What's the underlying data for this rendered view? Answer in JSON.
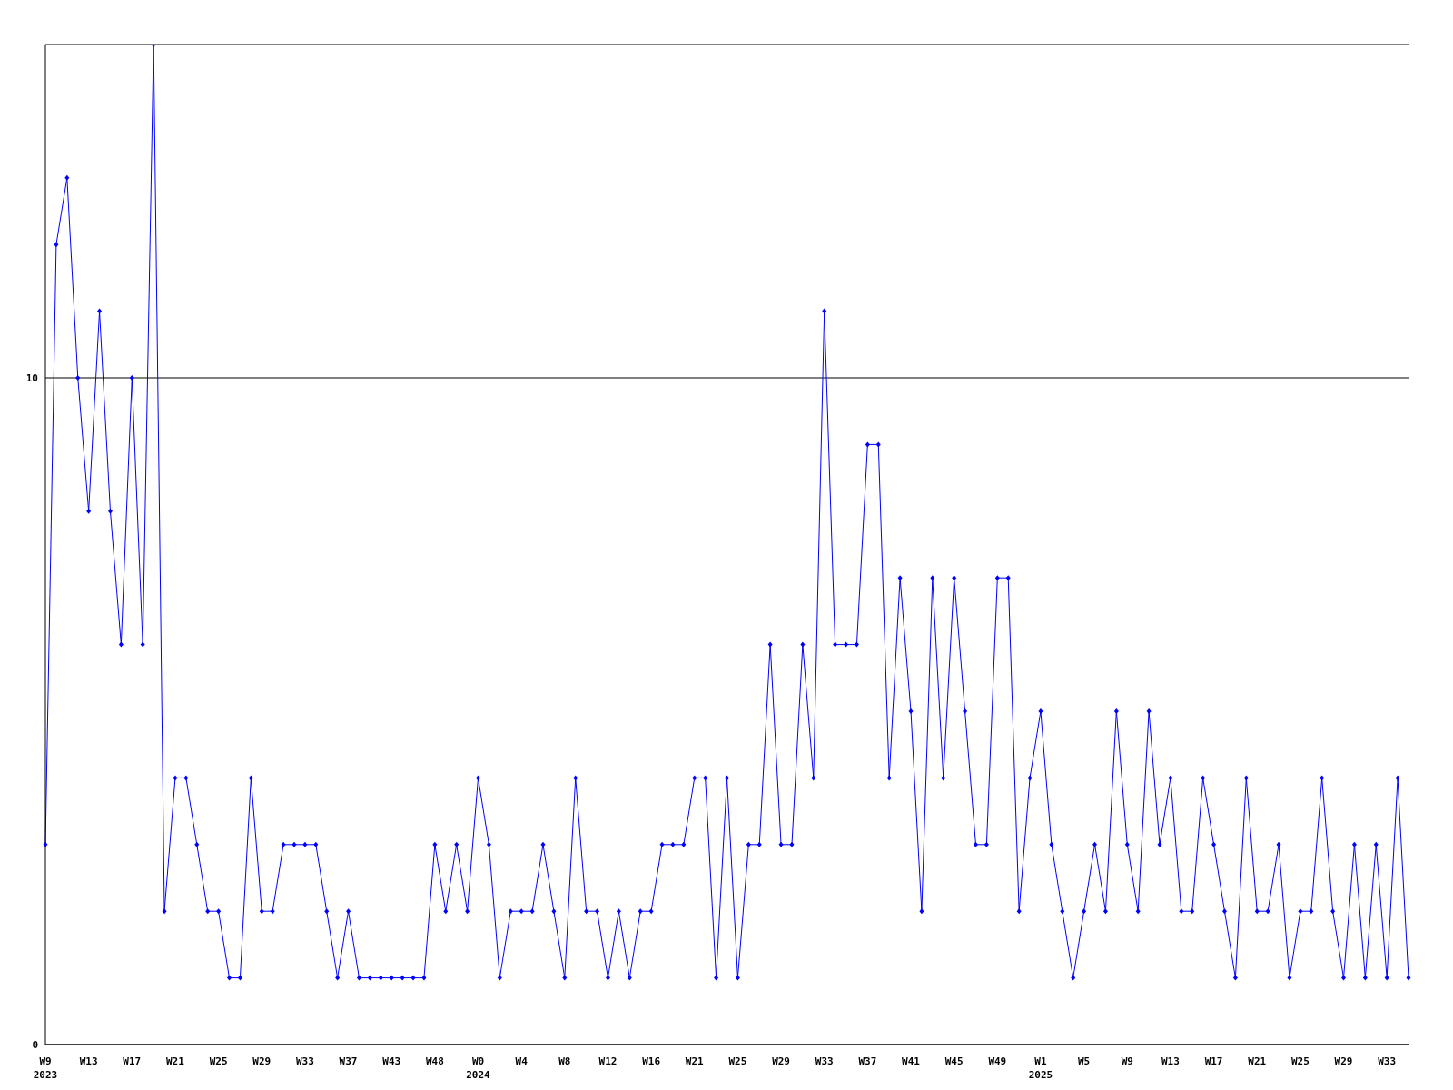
{
  "chart_data": {
    "type": "line",
    "categories": [
      "W9\n2023",
      null,
      null,
      null,
      "W13",
      null,
      null,
      null,
      "W17",
      null,
      null,
      null,
      "W21",
      null,
      null,
      null,
      "W25",
      null,
      null,
      null,
      "W29",
      null,
      null,
      null,
      "W33",
      null,
      null,
      null,
      "W37",
      null,
      null,
      null,
      "W43",
      null,
      null,
      null,
      "W48",
      null,
      null,
      null,
      "W0\n2024",
      null,
      null,
      null,
      "W4",
      null,
      null,
      null,
      "W8",
      null,
      null,
      null,
      "W12",
      null,
      null,
      null,
      "W16",
      null,
      null,
      null,
      "W21",
      null,
      null,
      null,
      "W25",
      null,
      null,
      null,
      "W29",
      null,
      null,
      null,
      "W33",
      null,
      null,
      null,
      "W37",
      null,
      null,
      null,
      "W41",
      null,
      null,
      null,
      "W45",
      null,
      null,
      null,
      "W49",
      null,
      null,
      null,
      "W1\n2025",
      null,
      null,
      null,
      "W5",
      null,
      null,
      null,
      "W9",
      null,
      null,
      null,
      "W13",
      null,
      null,
      null,
      "W17",
      null,
      null,
      null,
      "W21",
      null,
      null,
      null,
      "W25",
      null,
      null,
      null,
      "W29",
      null,
      null,
      null,
      "W33",
      null,
      null
    ],
    "series": [
      {
        "color": "#0000ff",
        "values": [
          3,
          12,
          13,
          10,
          8,
          11,
          8,
          6,
          10,
          6,
          15,
          2,
          4,
          4,
          3,
          2,
          2,
          1,
          1,
          4,
          2,
          2,
          3,
          3,
          3,
          3,
          2,
          1,
          2,
          1,
          1,
          1,
          1,
          1,
          1,
          1,
          3,
          2,
          3,
          2,
          4,
          3,
          1,
          2,
          2,
          2,
          3,
          2,
          1,
          4,
          2,
          2,
          1,
          2,
          1,
          2,
          2,
          3,
          3,
          3,
          4,
          4,
          1,
          4,
          1,
          3,
          3,
          6,
          3,
          3,
          6,
          4,
          11,
          6,
          6,
          6,
          9,
          9,
          4,
          7,
          5,
          2,
          7,
          4,
          7,
          5,
          3,
          3,
          7,
          7,
          2,
          4,
          5,
          3,
          2,
          1,
          2,
          3,
          2,
          5,
          3,
          2,
          5,
          3,
          4,
          2,
          2,
          4,
          3,
          2,
          1,
          4,
          2,
          2,
          3,
          1,
          2,
          2,
          4,
          2,
          1,
          3,
          1,
          3,
          1,
          4,
          1
        ]
      }
    ],
    "ylim": [
      0,
      15
    ],
    "yticks": [
      0,
      10
    ],
    "grid": "y",
    "marker": "diamond",
    "line_style": "solid"
  }
}
